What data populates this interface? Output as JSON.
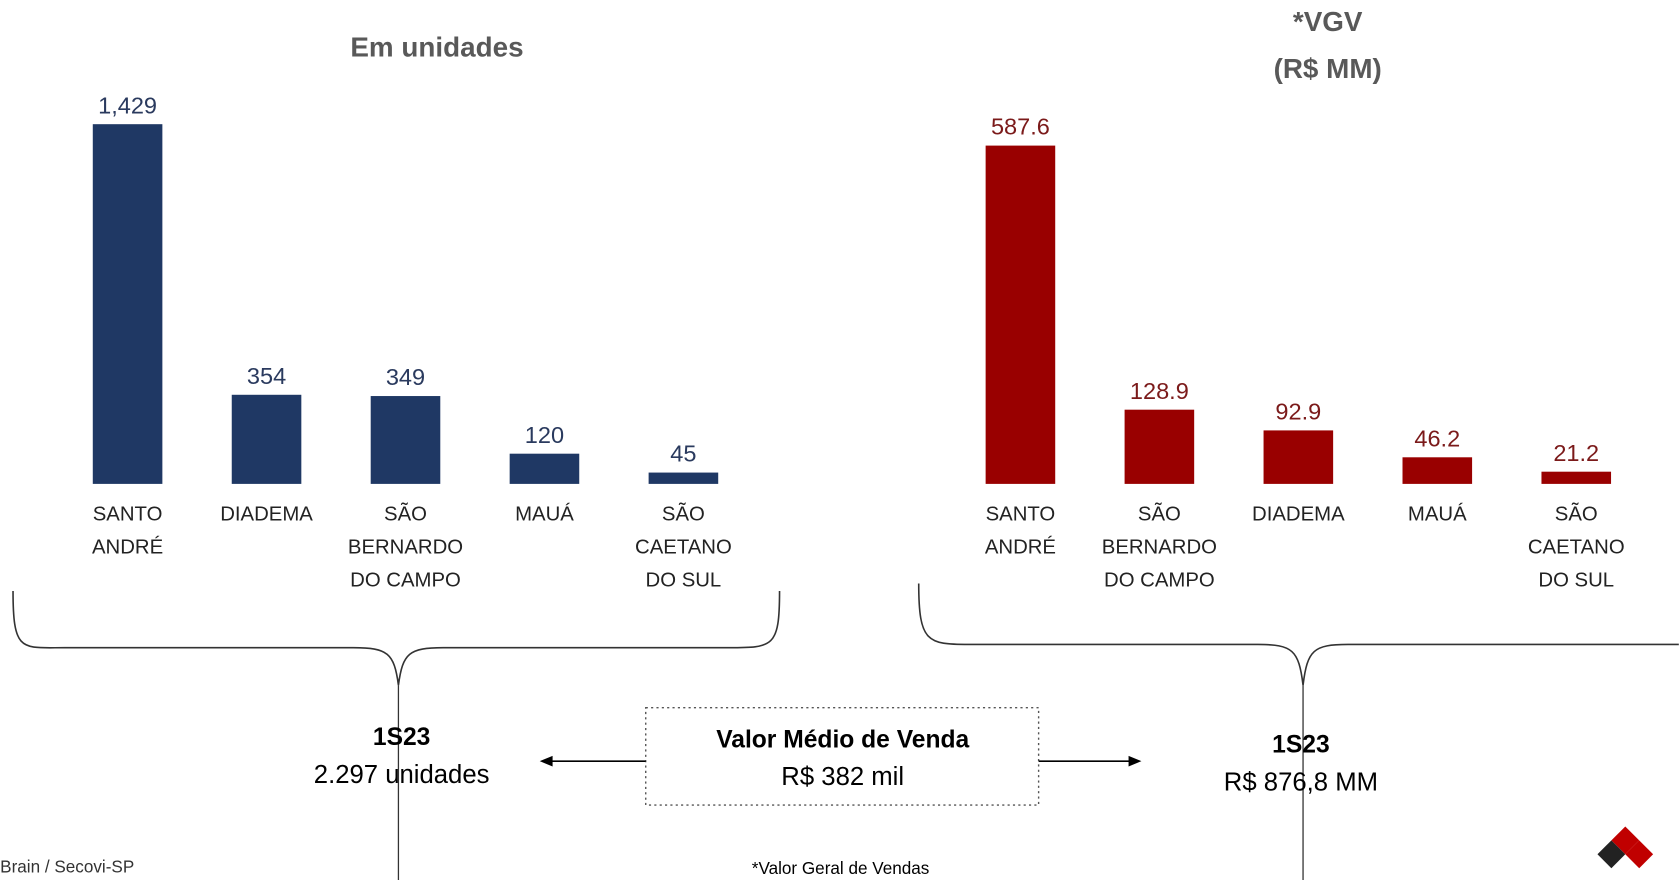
{
  "chart_data": [
    {
      "type": "bar",
      "title": "Em unidades",
      "color": "#1f3864",
      "label_color": "#2a3a5e",
      "categories": [
        [
          "SANTO",
          "ANDRÉ"
        ],
        [
          "DIADEMA"
        ],
        [
          "SÃO",
          "BERNARDO",
          "DO CAMPO"
        ],
        [
          "MAUÁ"
        ],
        [
          "SÃO",
          "CAETANO",
          "DO SUL"
        ]
      ],
      "values": [
        1429,
        354,
        349,
        120,
        45
      ],
      "value_labels": [
        "1,429",
        "354",
        "349",
        "120",
        "45"
      ]
    },
    {
      "type": "bar",
      "title": "*VGV",
      "subtitle": "(R$ MM)",
      "color": "#990000",
      "label_color": "#7b1a1a",
      "categories": [
        [
          "SANTO",
          "ANDRÉ"
        ],
        [
          "SÃO",
          "BERNARDO",
          "DO CAMPO"
        ],
        [
          "DIADEMA"
        ],
        [
          "MAUÁ"
        ],
        [
          "SÃO",
          "CAETANO",
          "DO SUL"
        ]
      ],
      "values": [
        587.6,
        128.9,
        92.9,
        46.2,
        21.2
      ]
    }
  ],
  "summary": {
    "left": {
      "period": "1S23",
      "text": "2.297 unidades"
    },
    "center": {
      "title": "Valor Médio de Venda",
      "text": "R$ 382 mil"
    },
    "right": {
      "period": "1S23",
      "text": "R$ 876,8 MM"
    }
  },
  "footer": {
    "source": "Brain /  Secovi-SP",
    "note": "*Valor Geral de Vendas"
  }
}
